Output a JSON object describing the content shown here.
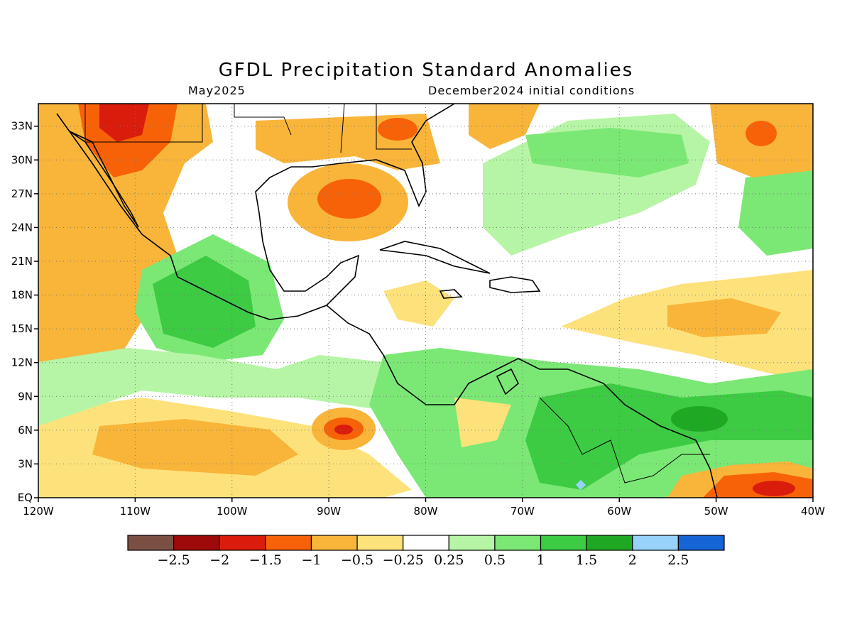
{
  "title": "GFDL Precipitation Standard Anomalies",
  "subtitle_left": "May2025",
  "subtitle_right": "December2024 initial conditions",
  "map": {
    "lon_range": [
      -120,
      -40
    ],
    "lat_range": [
      0,
      35
    ],
    "lon_ticks": [
      {
        "value": -120,
        "label": "120W"
      },
      {
        "value": -110,
        "label": "110W"
      },
      {
        "value": -100,
        "label": "100W"
      },
      {
        "value": -90,
        "label": "90W"
      },
      {
        "value": -80,
        "label": "80W"
      },
      {
        "value": -70,
        "label": "70W"
      },
      {
        "value": -60,
        "label": "60W"
      },
      {
        "value": -50,
        "label": "50W"
      },
      {
        "value": -40,
        "label": "40W"
      }
    ],
    "lat_ticks": [
      {
        "value": 0,
        "label": "EQ"
      },
      {
        "value": 3,
        "label": "3N"
      },
      {
        "value": 6,
        "label": "6N"
      },
      {
        "value": 9,
        "label": "9N"
      },
      {
        "value": 12,
        "label": "12N"
      },
      {
        "value": 15,
        "label": "15N"
      },
      {
        "value": 18,
        "label": "18N"
      },
      {
        "value": 21,
        "label": "21N"
      },
      {
        "value": 24,
        "label": "24N"
      },
      {
        "value": 27,
        "label": "27N"
      },
      {
        "value": 30,
        "label": "30N"
      },
      {
        "value": 33,
        "label": "33N"
      }
    ],
    "grid": true
  },
  "colorbar": {
    "colors": [
      "#7a5045",
      "#9e0a0a",
      "#d91c0c",
      "#f76209",
      "#f8b53a",
      "#fde27b",
      "#ffffff",
      "#b6f5a5",
      "#7be875",
      "#3ccb42",
      "#1fa824",
      "#97d2fa",
      "#1565d6"
    ],
    "labels": [
      "-2.5",
      "-2",
      "-1.5",
      "-1",
      "-0.5",
      "-0.25",
      "0.25",
      "0.5",
      "1",
      "1.5",
      "2",
      "2.5"
    ]
  },
  "anomaly_blobs": [
    {
      "lon": -110,
      "lat": 31,
      "value": -1.5
    },
    {
      "lon": -113,
      "lat": 29,
      "value": -1
    },
    {
      "lon": -117,
      "lat": 16,
      "value": -1
    },
    {
      "lon": -88.5,
      "lat": 6,
      "value": -2
    },
    {
      "lon": -87,
      "lat": 27,
      "value": -1
    },
    {
      "lon": -82,
      "lat": 31.5,
      "value": -1
    },
    {
      "lon": -45,
      "lat": 32,
      "value": -1.5
    },
    {
      "lon": -45,
      "lat": 1,
      "value": -1.5
    },
    {
      "lon": -103,
      "lat": 17,
      "value": 1
    },
    {
      "lon": -97,
      "lat": 16,
      "value": 1
    },
    {
      "lon": -67,
      "lat": 6,
      "value": 1
    },
    {
      "lon": -52,
      "lat": 8,
      "value": 1.5
    },
    {
      "lon": -60,
      "lat": 2,
      "value": 1
    },
    {
      "lon": -64,
      "lat": 1,
      "value": 2.5
    }
  ]
}
